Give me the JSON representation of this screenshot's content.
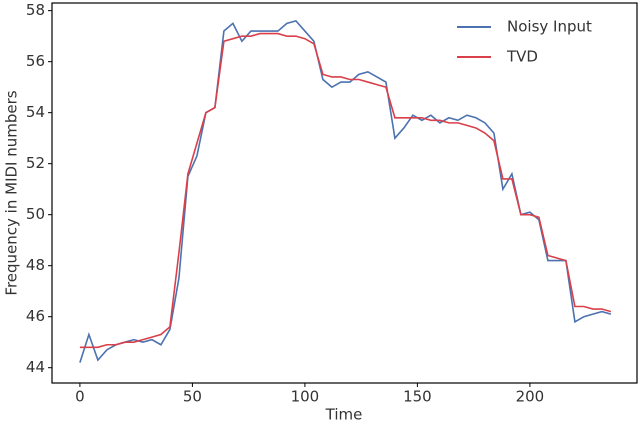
{
  "chart_data": {
    "type": "line",
    "xlabel": "Time",
    "ylabel": "Frequency in MIDI numbers",
    "x": [
      0,
      4,
      8,
      12,
      16,
      20,
      24,
      28,
      32,
      36,
      40,
      44,
      48,
      52,
      56,
      60,
      64,
      68,
      72,
      76,
      80,
      84,
      88,
      92,
      96,
      100,
      104,
      108,
      112,
      116,
      120,
      124,
      128,
      132,
      136,
      140,
      144,
      148,
      152,
      156,
      160,
      164,
      168,
      172,
      176,
      180,
      184,
      188,
      192,
      196,
      200,
      204,
      208,
      212,
      216,
      220,
      224,
      228,
      232,
      236
    ],
    "series": [
      {
        "name": "Noisy Input",
        "color": "#4c72b0",
        "values": [
          44.2,
          45.3,
          44.3,
          44.7,
          44.9,
          45.0,
          45.1,
          45.0,
          45.1,
          44.9,
          45.5,
          47.5,
          51.5,
          52.3,
          54.0,
          54.2,
          57.2,
          57.5,
          56.8,
          57.2,
          57.2,
          57.2,
          57.2,
          57.5,
          57.6,
          57.2,
          56.8,
          55.3,
          55.0,
          55.2,
          55.2,
          55.5,
          55.6,
          55.4,
          55.2,
          53.0,
          53.4,
          53.9,
          53.7,
          53.9,
          53.6,
          53.8,
          53.7,
          53.9,
          53.8,
          53.6,
          53.2,
          51.0,
          51.6,
          50.0,
          50.1,
          49.8,
          48.2,
          48.2,
          48.2,
          45.8,
          46.0,
          46.1,
          46.2,
          46.1
        ]
      },
      {
        "name": "TVD",
        "color": "#d9404a",
        "values": [
          44.8,
          44.8,
          44.8,
          44.9,
          44.9,
          45.0,
          45.0,
          45.1,
          45.2,
          45.3,
          45.6,
          48.5,
          51.6,
          52.8,
          54.0,
          54.2,
          56.8,
          56.9,
          57.0,
          57.0,
          57.1,
          57.1,
          57.1,
          57.0,
          57.0,
          56.9,
          56.7,
          55.5,
          55.4,
          55.4,
          55.3,
          55.3,
          55.2,
          55.1,
          55.0,
          53.8,
          53.8,
          53.8,
          53.8,
          53.7,
          53.7,
          53.6,
          53.6,
          53.5,
          53.4,
          53.2,
          52.9,
          51.4,
          51.4,
          50.0,
          50.0,
          49.9,
          48.4,
          48.3,
          48.2,
          46.4,
          46.4,
          46.3,
          46.3,
          46.2
        ]
      }
    ],
    "xlim": [
      -12.4,
      247.6
    ],
    "ylim": [
      43.4,
      58.3
    ],
    "xticks": [
      0,
      50,
      100,
      150,
      200
    ],
    "yticks": [
      44,
      46,
      48,
      50,
      52,
      54,
      56,
      58
    ],
    "legend": "upper right",
    "grid": false
  }
}
